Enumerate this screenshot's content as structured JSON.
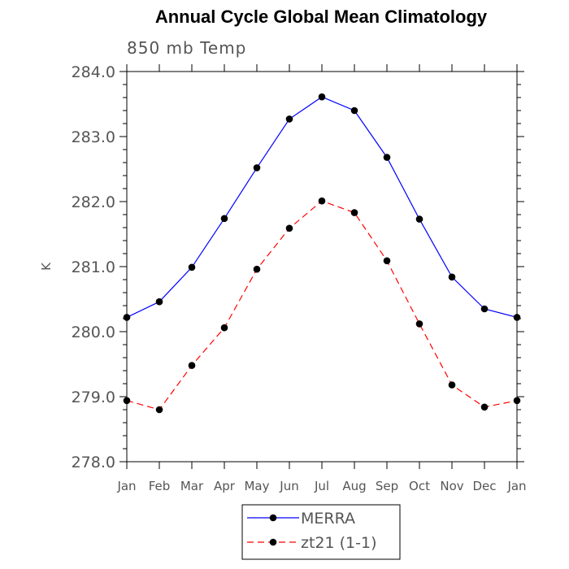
{
  "chart_data": {
    "type": "line",
    "title": "Annual Cycle Global Mean Climatology",
    "subtitle": "850 mb Temp",
    "xlabel": "",
    "ylabel": "K",
    "categories": [
      "Jan",
      "Feb",
      "Mar",
      "Apr",
      "May",
      "Jun",
      "Jul",
      "Aug",
      "Sep",
      "Oct",
      "Nov",
      "Dec",
      "Jan"
    ],
    "ylim": [
      278.0,
      284.0
    ],
    "yticks": [
      "278.0",
      "279.0",
      "280.0",
      "281.0",
      "282.0",
      "283.0",
      "284.0"
    ],
    "grid": false,
    "legend_position": "bottom-center",
    "series": [
      {
        "name": "MERRA",
        "color": "#0000ff",
        "dash": "solid",
        "values": [
          280.22,
          280.46,
          280.99,
          281.74,
          282.52,
          283.27,
          283.61,
          283.4,
          282.68,
          281.73,
          280.84,
          280.35,
          280.22
        ]
      },
      {
        "name": "zt21 (1-1)",
        "color": "#ff0000",
        "dash": "dashed",
        "values": [
          278.94,
          278.8,
          279.48,
          280.06,
          280.96,
          281.59,
          282.01,
          281.83,
          281.09,
          280.12,
          279.18,
          278.84,
          278.94
        ]
      }
    ]
  }
}
